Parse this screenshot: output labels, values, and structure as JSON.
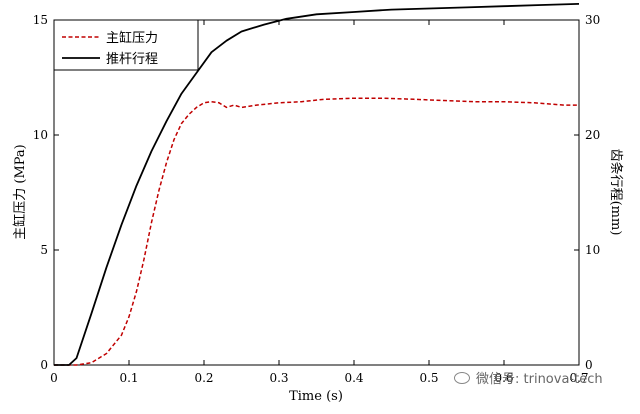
{
  "chart_data": {
    "type": "line",
    "xlabel": "Time (s)",
    "ylabel_left": "主缸压力 (MPa)",
    "ylabel_right": "齿条行程(mm)",
    "xlim": [
      0,
      0.7
    ],
    "ylim_left": [
      0,
      15
    ],
    "ylim_right": [
      0,
      30
    ],
    "x_ticks": [
      "0",
      "0.1",
      "0.2",
      "0.3",
      "0.4",
      "0.5",
      "0.6",
      "0.7"
    ],
    "y_ticks_left": [
      "0",
      "5",
      "10",
      "15"
    ],
    "y_ticks_right": [
      "0",
      "10",
      "20",
      "30"
    ],
    "legend_position": "top-left",
    "grid": false,
    "series": [
      {
        "name": "主缸压力",
        "axis": "left",
        "color": "#c00000",
        "style": "dashed",
        "x": [
          0,
          0.03,
          0.05,
          0.07,
          0.09,
          0.1,
          0.11,
          0.12,
          0.13,
          0.14,
          0.15,
          0.16,
          0.17,
          0.18,
          0.19,
          0.2,
          0.21,
          0.22,
          0.23,
          0.24,
          0.25,
          0.27,
          0.3,
          0.33,
          0.36,
          0.4,
          0.44,
          0.48,
          0.52,
          0.56,
          0.6,
          0.64,
          0.68,
          0.7
        ],
        "values": [
          0,
          0,
          0.1,
          0.5,
          1.3,
          2.1,
          3.2,
          4.6,
          6.2,
          7.6,
          8.8,
          9.8,
          10.5,
          10.9,
          11.2,
          11.4,
          11.45,
          11.4,
          11.2,
          11.3,
          11.2,
          11.3,
          11.4,
          11.45,
          11.55,
          11.6,
          11.6,
          11.55,
          11.5,
          11.45,
          11.45,
          11.4,
          11.3,
          11.3
        ]
      },
      {
        "name": "推杆行程",
        "axis": "right",
        "color": "#000000",
        "style": "solid",
        "x": [
          0,
          0.02,
          0.03,
          0.05,
          0.07,
          0.09,
          0.11,
          0.13,
          0.15,
          0.17,
          0.19,
          0.21,
          0.23,
          0.25,
          0.28,
          0.31,
          0.35,
          0.4,
          0.45,
          0.5,
          0.55,
          0.6,
          0.65,
          0.7
        ],
        "values": [
          0,
          0,
          0.6,
          4.5,
          8.5,
          12.2,
          15.6,
          18.6,
          21.2,
          23.6,
          25.4,
          27.2,
          28.2,
          29.0,
          29.6,
          30.1,
          30.5,
          30.7,
          30.9,
          31.0,
          31.1,
          31.2,
          31.3,
          31.4
        ]
      }
    ]
  },
  "watermark": {
    "text": "微信号: trinova-tech"
  }
}
